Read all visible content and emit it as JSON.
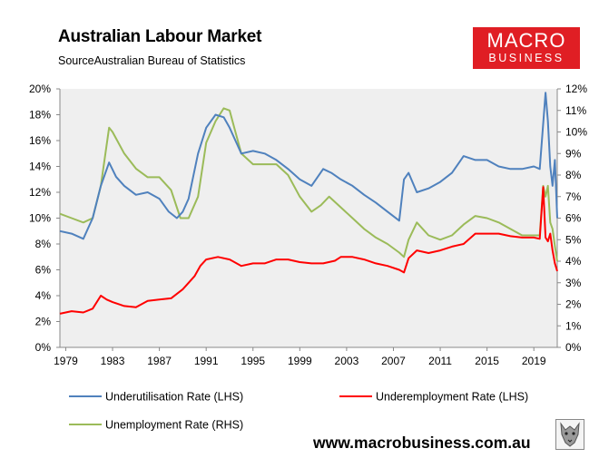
{
  "header": {
    "title": "Australian Labour Market",
    "source": "SourceAustralian Bureau of Statistics"
  },
  "logo": {
    "line1": "MACRO",
    "line2": "BUSINESS",
    "color": "#e01e24"
  },
  "footer": {
    "url": "www.macrobusiness.com.au"
  },
  "chart_data": {
    "type": "line",
    "title": "Australian Labour Market",
    "plot_background": "#efefef",
    "grid": false,
    "legend_position": "bottom",
    "x_ticks": [
      "1979",
      "1983",
      "1987",
      "1991",
      "1995",
      "1999",
      "2003",
      "2007",
      "2011",
      "2015",
      "2019"
    ],
    "xlim": [
      1978.5,
      2021.0
    ],
    "y_left": {
      "ticks": [
        "0%",
        "2%",
        "4%",
        "6%",
        "8%",
        "10%",
        "12%",
        "14%",
        "16%",
        "18%",
        "20%"
      ],
      "ylim": [
        0,
        20
      ]
    },
    "y_right": {
      "ticks": [
        "0%",
        "1%",
        "2%",
        "3%",
        "4%",
        "5%",
        "6%",
        "7%",
        "8%",
        "9%",
        "10%",
        "11%",
        "12%"
      ],
      "ylim": [
        0,
        12
      ]
    },
    "series": [
      {
        "name": "Underutilisation Rate (LHS)",
        "axis": "left",
        "color": "#4f81bd",
        "x": [
          1978.5,
          1979.5,
          1980.5,
          1981.3,
          1982.0,
          1982.7,
          1983.3,
          1984.0,
          1985.0,
          1986.0,
          1987.0,
          1987.8,
          1988.5,
          1989.0,
          1989.5,
          1990.3,
          1991.0,
          1991.8,
          1992.5,
          1993.0,
          1993.5,
          1994.0,
          1995.0,
          1996.0,
          1997.0,
          1998.0,
          1999.0,
          2000.0,
          2001.0,
          2001.7,
          2002.5,
          2003.5,
          2004.5,
          2005.5,
          2006.5,
          2007.5,
          2007.9,
          2008.3,
          2009.0,
          2010.0,
          2011.0,
          2012.0,
          2013.0,
          2014.0,
          2015.0,
          2016.0,
          2017.0,
          2018.0,
          2019.0,
          2019.5,
          2020.0,
          2020.2,
          2020.4,
          2020.6,
          2020.8,
          2021.0
        ],
        "y": [
          9.0,
          8.8,
          8.4,
          10.0,
          12.5,
          14.3,
          13.2,
          12.5,
          11.8,
          12.0,
          11.5,
          10.5,
          10.0,
          10.5,
          11.5,
          15.0,
          17.0,
          18.0,
          17.8,
          17.0,
          16.0,
          15.0,
          15.2,
          15.0,
          14.5,
          13.8,
          13.0,
          12.5,
          13.8,
          13.5,
          13.0,
          12.5,
          11.8,
          11.2,
          10.5,
          9.8,
          13.0,
          13.5,
          12.0,
          12.3,
          12.8,
          13.5,
          14.8,
          14.5,
          14.5,
          14.0,
          13.8,
          13.8,
          14.0,
          13.8,
          19.7,
          17.5,
          14.0,
          12.5,
          14.5,
          10.0
        ]
      },
      {
        "name": "Underemployment Rate (LHS)",
        "axis": "left",
        "color": "#ff0000",
        "x": [
          1978.5,
          1979.5,
          1980.5,
          1981.3,
          1982.0,
          1982.5,
          1983.0,
          1984.0,
          1985.0,
          1986.0,
          1987.0,
          1988.0,
          1989.0,
          1990.0,
          1990.5,
          1991.0,
          1992.0,
          1993.0,
          1994.0,
          1995.0,
          1996.0,
          1997.0,
          1998.0,
          1999.0,
          2000.0,
          2001.0,
          2002.0,
          2002.5,
          2003.5,
          2004.5,
          2005.5,
          2006.5,
          2007.5,
          2007.9,
          2008.3,
          2009.0,
          2010.0,
          2011.0,
          2012.0,
          2013.0,
          2014.0,
          2015.0,
          2016.0,
          2017.0,
          2018.0,
          2019.0,
          2019.5,
          2019.8,
          2020.0,
          2020.2,
          2020.4,
          2020.6,
          2020.8,
          2021.0
        ],
        "y": [
          2.6,
          2.8,
          2.7,
          3.0,
          4.0,
          3.7,
          3.5,
          3.2,
          3.1,
          3.6,
          3.7,
          3.8,
          4.5,
          5.5,
          6.3,
          6.8,
          7.0,
          6.8,
          6.3,
          6.5,
          6.5,
          6.8,
          6.8,
          6.6,
          6.5,
          6.5,
          6.7,
          7.0,
          7.0,
          6.8,
          6.5,
          6.3,
          6.0,
          5.8,
          6.9,
          7.5,
          7.3,
          7.5,
          7.8,
          8.0,
          8.8,
          8.8,
          8.8,
          8.6,
          8.5,
          8.5,
          8.4,
          12.4,
          8.5,
          8.2,
          8.8,
          7.5,
          6.5,
          5.9
        ]
      },
      {
        "name": "Unemployment Rate (RHS)",
        "axis": "right",
        "color": "#9bbb59",
        "x": [
          1978.5,
          1979.5,
          1980.5,
          1981.3,
          1982.0,
          1982.7,
          1983.0,
          1984.0,
          1985.0,
          1986.0,
          1987.0,
          1988.0,
          1988.8,
          1989.5,
          1990.3,
          1991.0,
          1991.8,
          1992.5,
          1993.0,
          1993.5,
          1994.0,
          1995.0,
          1996.0,
          1997.0,
          1998.0,
          1999.0,
          2000.0,
          2000.8,
          2001.5,
          2002.5,
          2003.5,
          2004.5,
          2005.5,
          2006.5,
          2007.5,
          2007.9,
          2008.3,
          2009.0,
          2010.0,
          2011.0,
          2012.0,
          2013.0,
          2014.0,
          2015.0,
          2016.0,
          2017.0,
          2018.0,
          2019.0,
          2019.5,
          2019.8,
          2020.0,
          2020.2,
          2020.4,
          2020.6,
          2020.8,
          2021.0
        ],
        "y": [
          6.2,
          6.0,
          5.8,
          6.0,
          7.5,
          10.2,
          10.0,
          9.0,
          8.3,
          7.9,
          7.9,
          7.3,
          6.0,
          6.0,
          7.0,
          9.5,
          10.5,
          11.1,
          11.0,
          10.0,
          9.0,
          8.5,
          8.5,
          8.5,
          8.0,
          7.0,
          6.3,
          6.6,
          7.0,
          6.5,
          6.0,
          5.5,
          5.1,
          4.8,
          4.4,
          4.2,
          5.0,
          5.8,
          5.2,
          5.0,
          5.2,
          5.7,
          6.1,
          6.0,
          5.8,
          5.5,
          5.2,
          5.2,
          5.2,
          7.5,
          7.0,
          7.5,
          5.8,
          5.5,
          4.7,
          4.0
        ]
      }
    ]
  }
}
